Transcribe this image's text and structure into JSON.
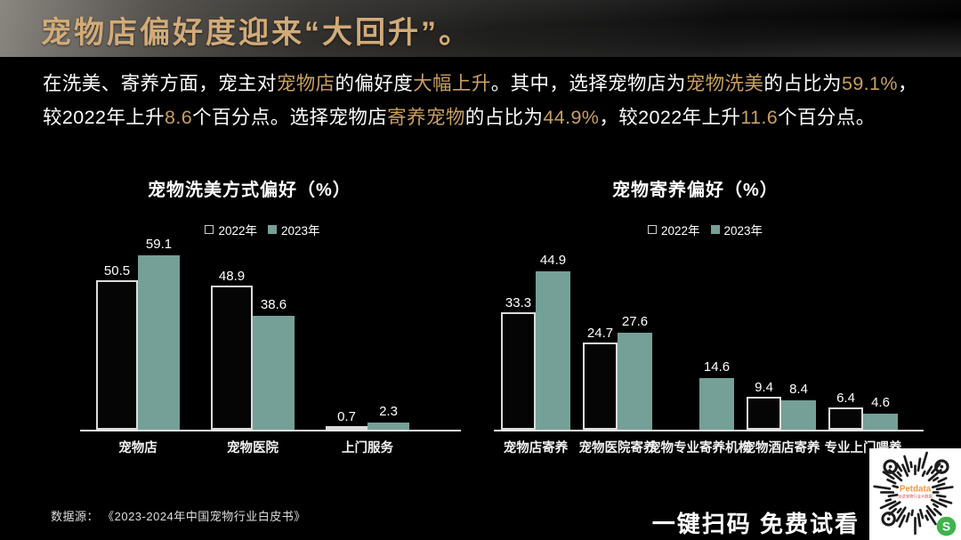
{
  "header": {
    "title": "宠物店偏好度迎来“大回升”。"
  },
  "intro": {
    "segments": [
      {
        "text": "在洗美、寄养方面，宠主对",
        "highlight": false
      },
      {
        "text": "宠物店",
        "highlight": true
      },
      {
        "text": "的偏好度",
        "highlight": false
      },
      {
        "text": "大幅上升",
        "highlight": true
      },
      {
        "text": "。其中，选择宠物店为",
        "highlight": false
      },
      {
        "text": "宠物洗美",
        "highlight": true
      },
      {
        "text": "的占比为",
        "highlight": false
      },
      {
        "text": "59.1%",
        "highlight": true
      },
      {
        "text": "，较2022年上升",
        "highlight": false
      },
      {
        "text": "8.6",
        "highlight": true
      },
      {
        "text": "个百分点。选择宠物店",
        "highlight": false
      },
      {
        "text": "寄养宠物",
        "highlight": true
      },
      {
        "text": "的占比为",
        "highlight": false
      },
      {
        "text": "44.9%",
        "highlight": true
      },
      {
        "text": "，较2022年上升",
        "highlight": false
      },
      {
        "text": "11.6",
        "highlight": true
      },
      {
        "text": "个百分点。",
        "highlight": false
      }
    ]
  },
  "colors": {
    "accent_gold": "#c99f5e",
    "title_gold": "#d2ab78",
    "bar_2023_fill": "#75a097",
    "bar_2022_border": "#dcdcdc",
    "background": "#000000"
  },
  "chart_data": [
    {
      "type": "bar",
      "title": "宠物洗美方式偏好（%）",
      "categories": [
        "宠物店",
        "宠物医院",
        "上门服务"
      ],
      "series": [
        {
          "name": "2022年",
          "swatch": "outline",
          "values": [
            50.5,
            48.9,
            0.7
          ]
        },
        {
          "name": "2023年",
          "swatch": "fill",
          "values": [
            59.1,
            38.6,
            2.3
          ]
        }
      ],
      "ylim": [
        0,
        65
      ],
      "grid": false,
      "legend_position": "top",
      "data_labels": true
    },
    {
      "type": "bar",
      "title": "宠物寄养偏好（%）",
      "categories": [
        "宠物店寄养",
        "宠物医院寄养",
        "宠物专业寄养机构",
        "宠物酒店寄养",
        "专业上门喂养"
      ],
      "series": [
        {
          "name": "2022年",
          "swatch": "outline",
          "values": [
            33.3,
            24.7,
            null,
            9.4,
            6.4
          ]
        },
        {
          "name": "2023年",
          "swatch": "fill",
          "values": [
            44.9,
            27.6,
            14.6,
            8.4,
            4.6
          ]
        }
      ],
      "ylim": [
        0,
        55
      ],
      "grid": false,
      "legend_position": "top",
      "data_labels": true
    }
  ],
  "footer": {
    "source": "数据源： 《2023-2024年中国宠物行业白皮书》",
    "cta": "一键扫码 免费试看",
    "qr_brand": "Petdata",
    "qr_brand_sub": "派读宠物行业大数据",
    "qr_brand_color": "#f09a3e",
    "qr_sub_color": "#d9534f",
    "qr_badge_color": "#3cb54a"
  }
}
